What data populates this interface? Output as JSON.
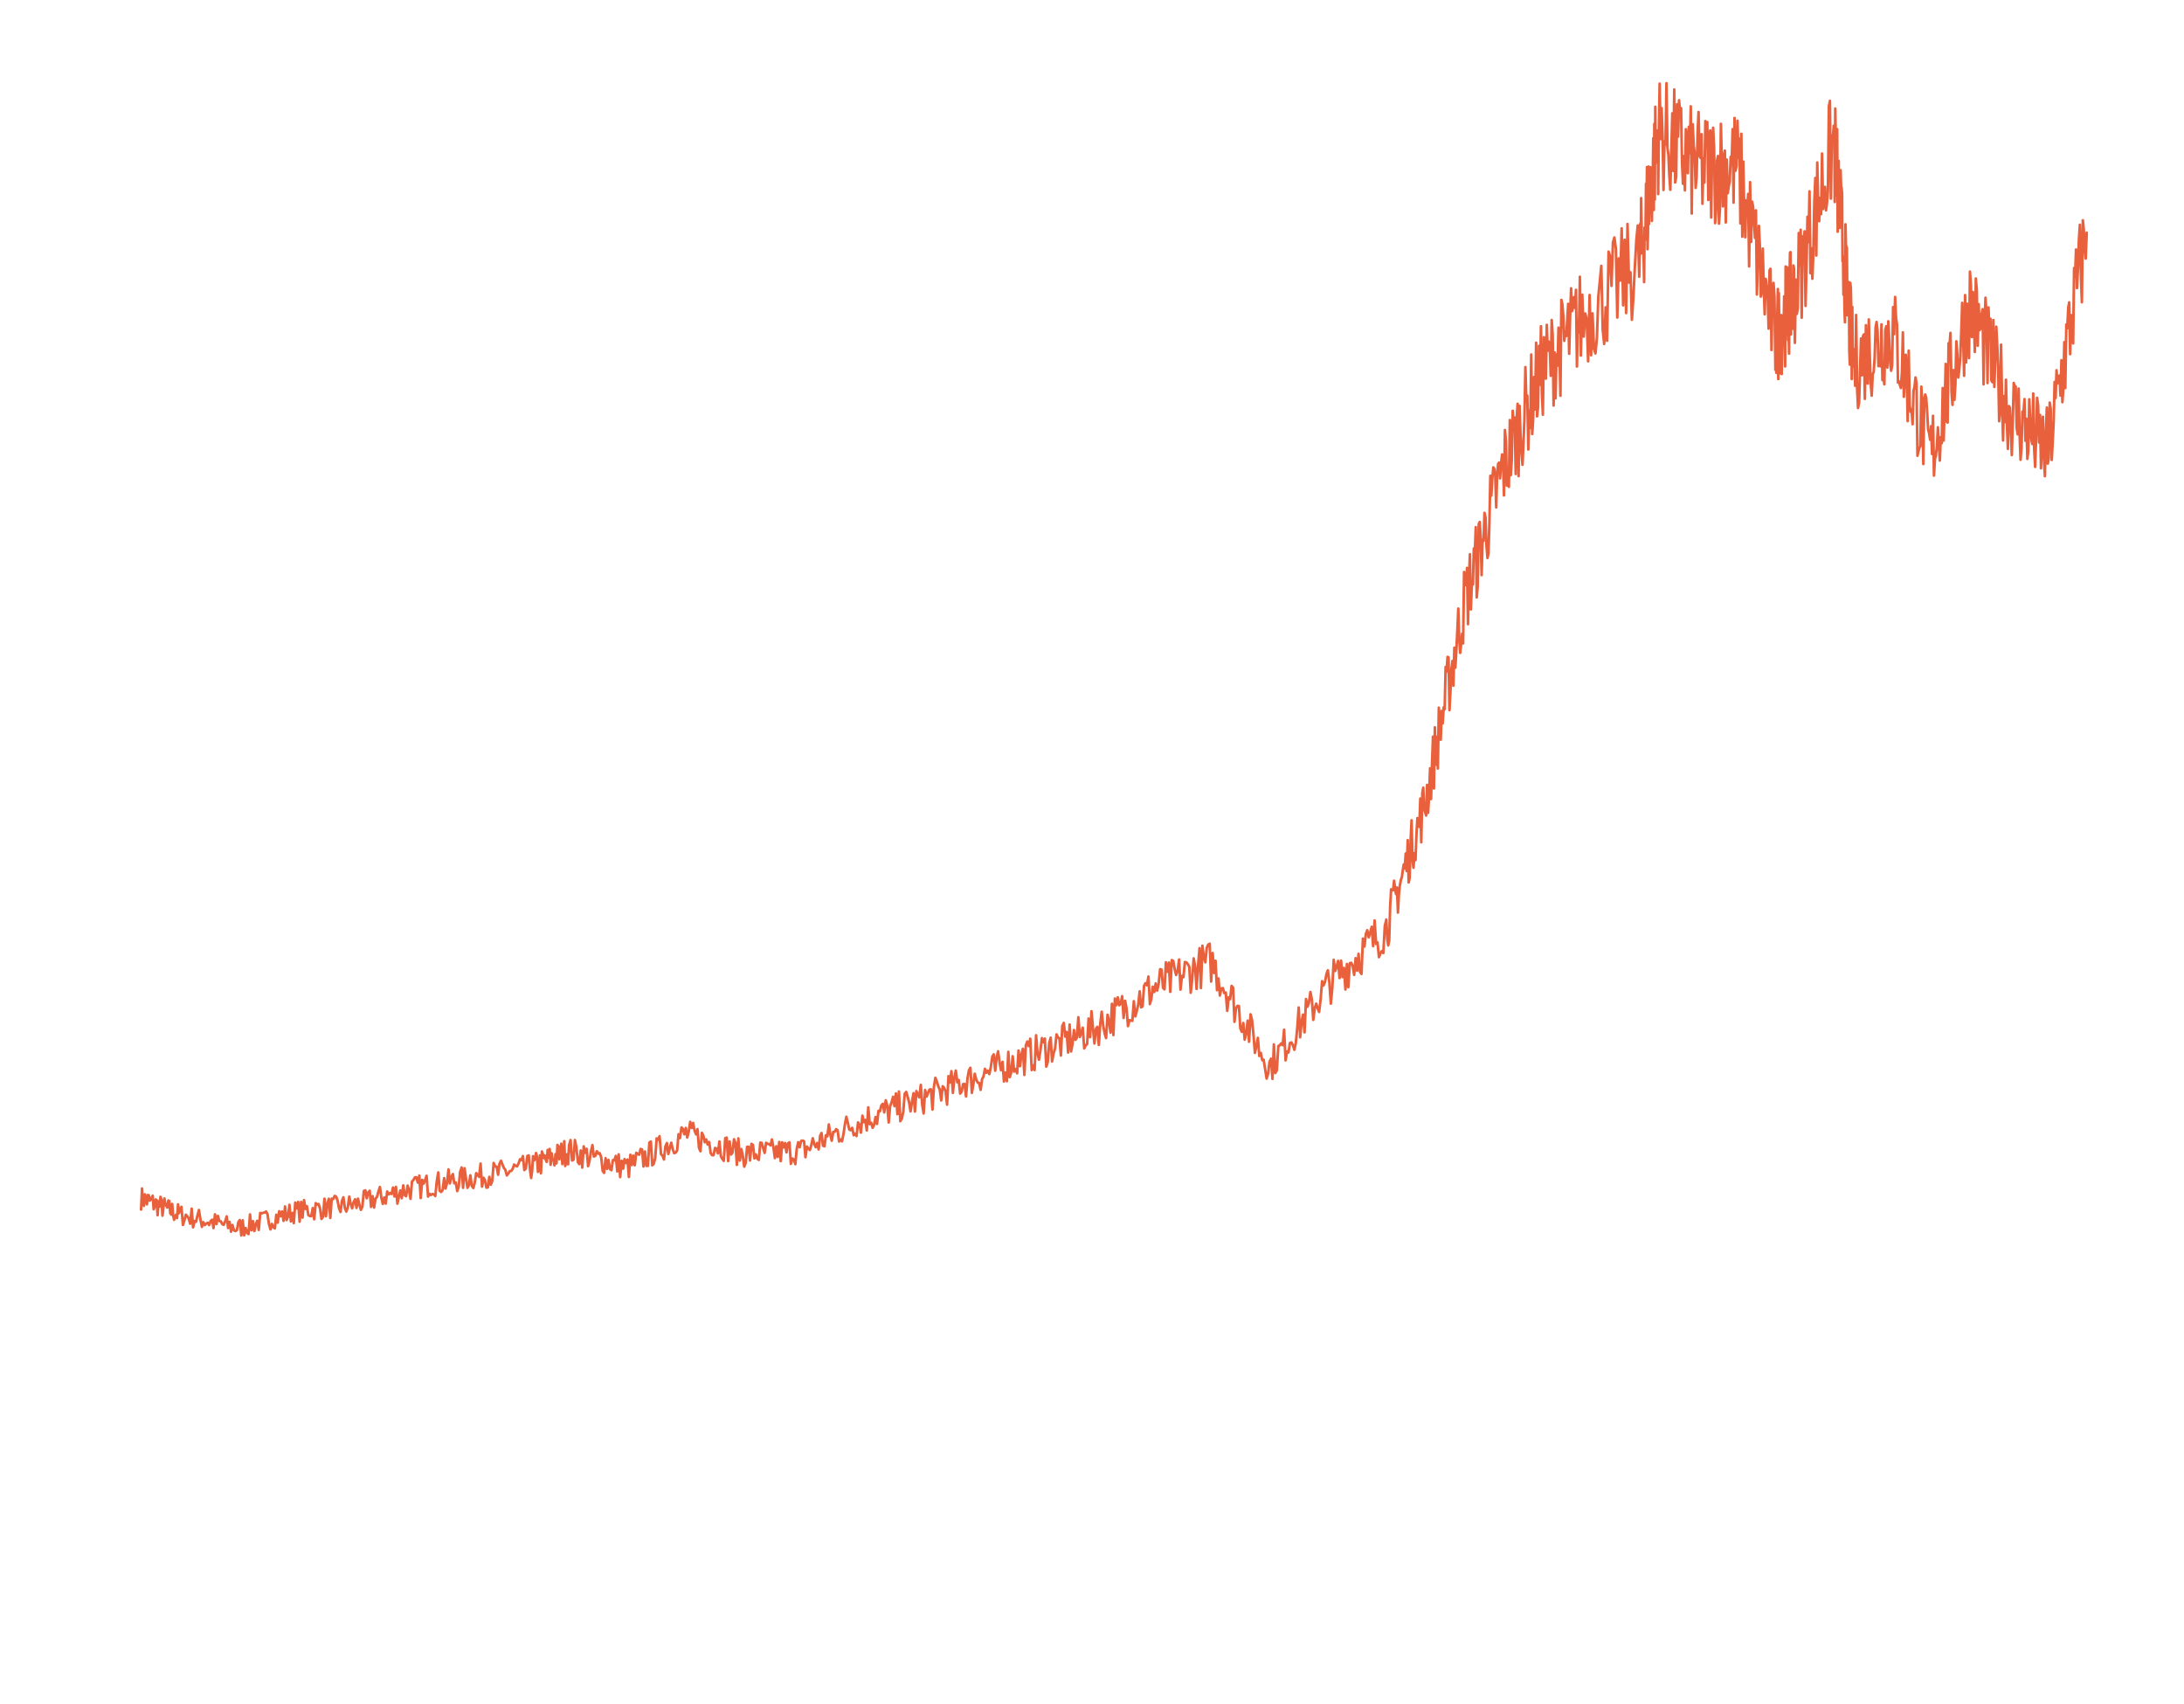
{
  "chart_data": {
    "type": "line",
    "title": "",
    "xlabel": "",
    "ylabel": "",
    "axes_visible": false,
    "grid": false,
    "legend": "none",
    "x": [
      0,
      2,
      5,
      8,
      11,
      14,
      17,
      20,
      22,
      25,
      28,
      31,
      34,
      37,
      40,
      43,
      46,
      49,
      52,
      55,
      58,
      61,
      64,
      66,
      68,
      70,
      72,
      74,
      77,
      78,
      80,
      82,
      84,
      85,
      87,
      88,
      90,
      92,
      94,
      96,
      98,
      100
    ],
    "y": [
      50,
      45,
      41,
      46,
      48,
      53,
      56,
      59,
      64,
      59,
      69,
      63,
      64,
      73,
      79,
      86,
      93,
      100,
      112,
      120,
      89,
      113,
      130,
      167,
      226,
      266,
      295,
      310,
      327,
      366,
      355,
      356,
      305,
      318,
      363,
      297,
      307,
      270,
      315,
      284,
      271,
      336
    ],
    "ylim": [
      -100,
      405
    ],
    "xlim": [
      -7.25,
      105
    ],
    "series": [
      {
        "values": [
          50,
          45,
          41,
          46,
          48,
          53,
          56,
          59,
          64,
          59,
          69,
          63,
          64,
          73,
          79,
          86,
          93,
          100,
          112,
          120,
          89,
          113,
          130,
          167,
          226,
          266,
          295,
          310,
          327,
          366,
          355,
          356,
          305,
          318,
          363,
          297,
          307,
          270,
          315,
          284,
          271,
          336
        ],
        "color": "#e8603c"
      }
    ]
  }
}
